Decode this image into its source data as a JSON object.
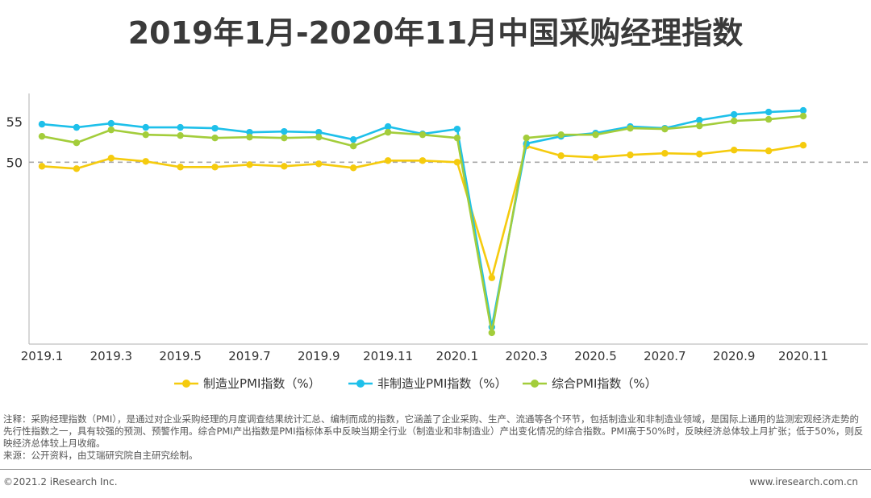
{
  "page": {
    "title": "2019年1月-2020年11月中国采购经理指数",
    "notes": [
      "注释：采购经理指数（PMI），是通过对企业采购经理的月度调查结果统计汇总、编制而成的指数，它涵盖了企业采购、生产、流通等各个环节，包括制造业和非制造业领域，是国际上通用的监测宏观经济走势的先行性指数之一，具有较强的预测、预警作用。综合PMI产出指数是PMI指标体系中反映当期全行业（制造业和非制造业）产出变化情况的综合指数。PMI高于50%时，反映经济总体较上月扩张；低于50%，则反映经济总体较上月收缩。",
      "来源：公开资料，由艾瑞研究院自主研究绘制。"
    ],
    "copyright": "©2021.2 iResearch Inc.",
    "website": "www.iresearch.com.cn"
  },
  "chart_data": {
    "type": "line",
    "title": "2019年1月-2020年11月中国采购经理指数",
    "x": [
      "2019.1",
      "2019.2",
      "2019.3",
      "2019.4",
      "2019.5",
      "2019.6",
      "2019.7",
      "2019.8",
      "2019.9",
      "2019.10",
      "2019.11",
      "2019.12",
      "2020.1",
      "2020.2",
      "2020.3",
      "2020.4",
      "2020.5",
      "2020.6",
      "2020.7",
      "2020.8",
      "2020.9",
      "2020.10",
      "2020.11"
    ],
    "x_tick_labels": [
      "2019.1",
      "2019.3",
      "2019.5",
      "2019.7",
      "2019.9",
      "2019.11",
      "2020.1",
      "2020.3",
      "2020.5",
      "2020.7",
      "2020.9",
      "2020.11"
    ],
    "y_ticks": [
      50,
      55
    ],
    "ylim": [
      27.5,
      58.5
    ],
    "reference_line": 50,
    "grid": false,
    "legend_position": "bottom",
    "series": [
      {
        "name": "制造业PMI指数（%）",
        "color": "#f5cb0e",
        "values": [
          49.5,
          49.2,
          50.5,
          50.1,
          49.4,
          49.4,
          49.7,
          49.5,
          49.8,
          49.3,
          50.2,
          50.2,
          50.0,
          35.7,
          52.0,
          50.8,
          50.6,
          50.9,
          51.1,
          51.0,
          51.5,
          51.4,
          52.1
        ]
      },
      {
        "name": "非制造业PMI指数（%）",
        "color": "#1ec0ea",
        "values": [
          54.7,
          54.3,
          54.8,
          54.3,
          54.3,
          54.2,
          53.7,
          53.8,
          53.7,
          52.8,
          54.4,
          53.5,
          54.1,
          29.6,
          52.3,
          53.2,
          53.6,
          54.4,
          54.2,
          55.2,
          55.9,
          56.2,
          56.4
        ]
      },
      {
        "name": "综合PMI指数（%）",
        "color": "#a3cd3b",
        "values": [
          53.2,
          52.4,
          54.0,
          53.4,
          53.3,
          53.0,
          53.1,
          53.0,
          53.1,
          52.0,
          53.7,
          53.4,
          53.0,
          28.9,
          53.0,
          53.4,
          53.4,
          54.2,
          54.1,
          54.5,
          55.1,
          55.3,
          55.7
        ]
      }
    ]
  }
}
